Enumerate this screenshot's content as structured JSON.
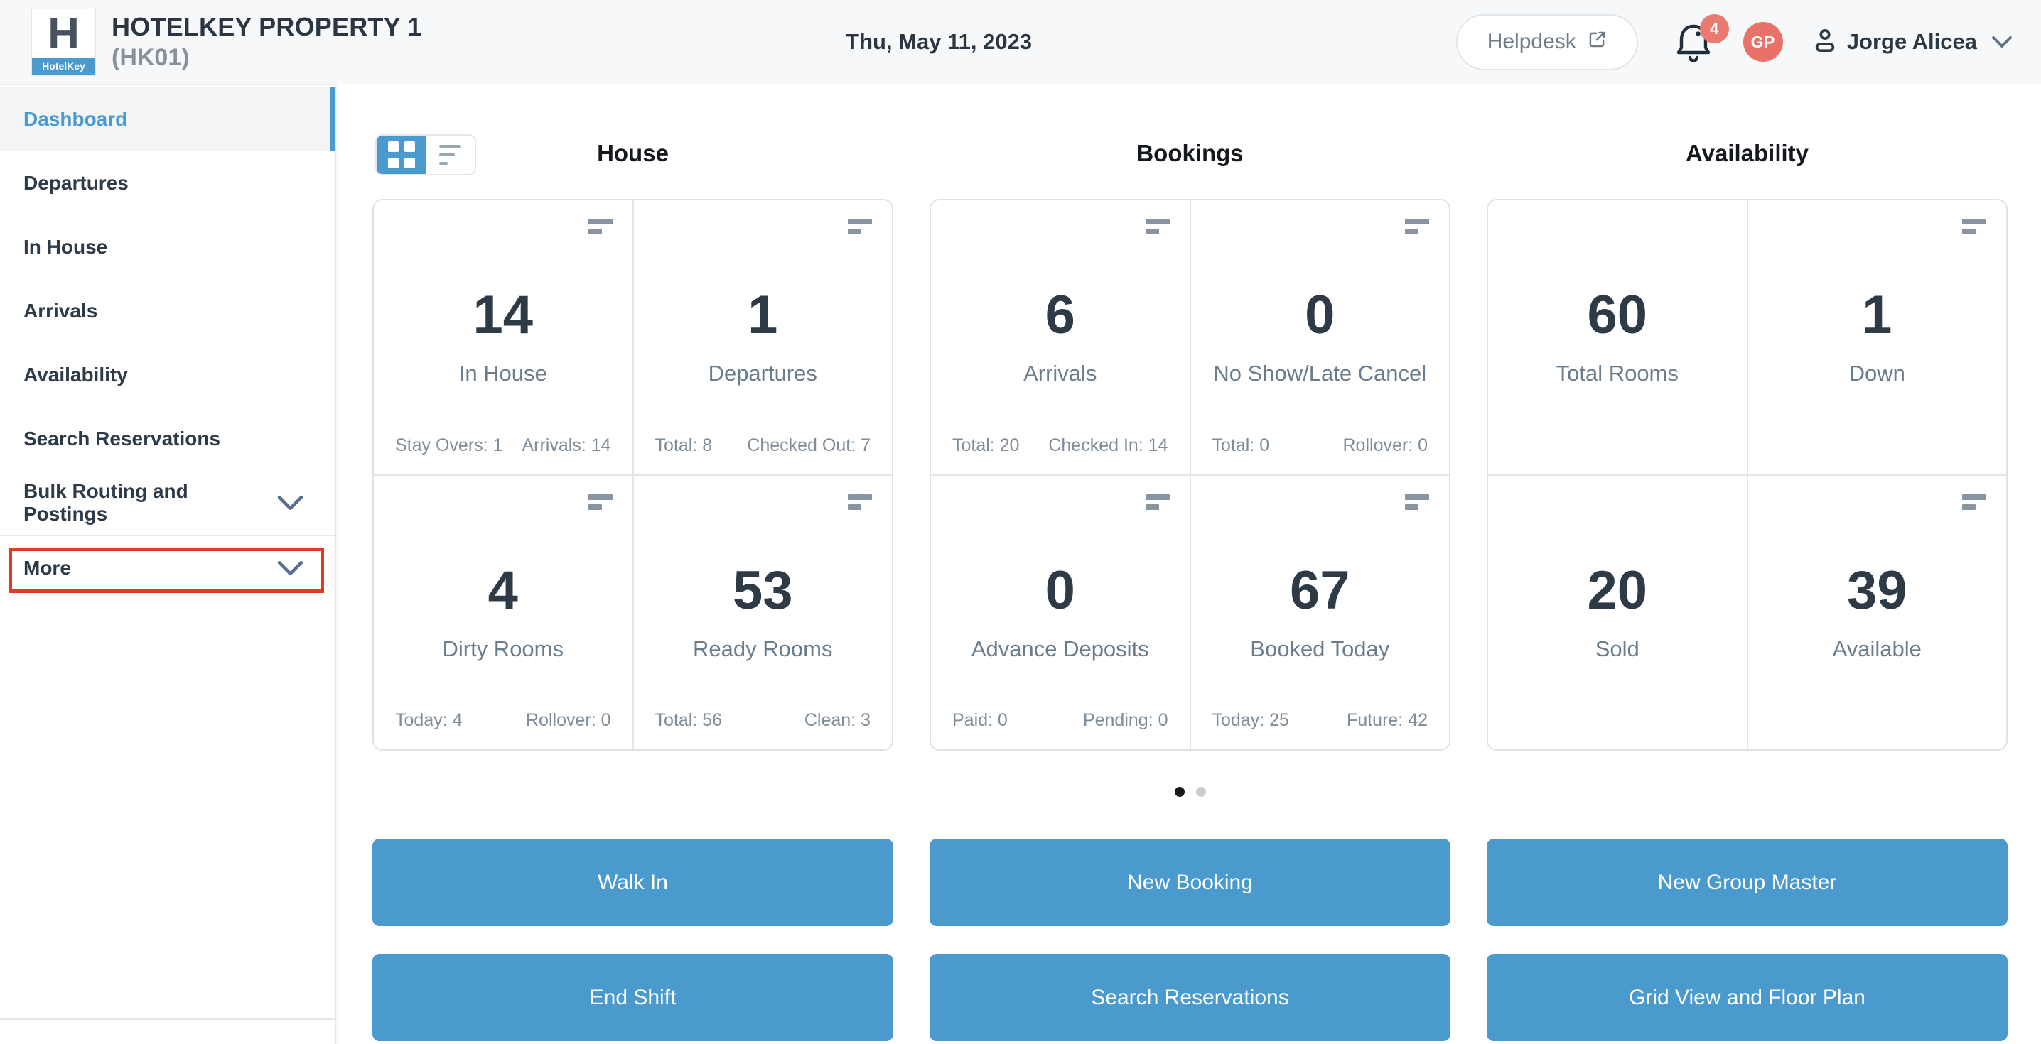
{
  "header": {
    "logo_letter": "H",
    "logo_brand": "HotelKey",
    "property_name": "HOTELKEY PROPERTY 1",
    "property_code": "(HK01)",
    "date": "Thu, May 11, 2023",
    "helpdesk_label": "Helpdesk",
    "notification_badge": "4",
    "avatar_initials": "GP",
    "user_name": "Jorge Alicea"
  },
  "sidebar": {
    "items": [
      {
        "label": "Dashboard",
        "active": true,
        "chevron": false,
        "highlighted": false,
        "divider_above": false
      },
      {
        "label": "Departures",
        "active": false,
        "chevron": false,
        "highlighted": false,
        "divider_above": false
      },
      {
        "label": "In House",
        "active": false,
        "chevron": false,
        "highlighted": false,
        "divider_above": false
      },
      {
        "label": "Arrivals",
        "active": false,
        "chevron": false,
        "highlighted": false,
        "divider_above": false
      },
      {
        "label": "Availability",
        "active": false,
        "chevron": false,
        "highlighted": false,
        "divider_above": false
      },
      {
        "label": "Search Reservations",
        "active": false,
        "chevron": false,
        "highlighted": false,
        "divider_above": false
      },
      {
        "label": "Bulk Routing and Postings",
        "active": false,
        "chevron": true,
        "highlighted": false,
        "divider_above": false
      },
      {
        "label": "More",
        "active": false,
        "chevron": true,
        "highlighted": true,
        "divider_above": true
      }
    ]
  },
  "view_toggle": {
    "active_view": "grid"
  },
  "columns": [
    {
      "title": "House",
      "cards": [
        {
          "value": "14",
          "label": "In House",
          "menu_icon": true,
          "stats": [
            {
              "label": "Stay Overs",
              "value": "1"
            },
            {
              "label": "Arrivals",
              "value": "14"
            }
          ]
        },
        {
          "value": "1",
          "label": "Departures",
          "menu_icon": true,
          "stats": [
            {
              "label": "Total",
              "value": "8"
            },
            {
              "label": "Checked Out",
              "value": "7"
            }
          ]
        },
        {
          "value": "4",
          "label": "Dirty Rooms",
          "menu_icon": true,
          "stats": [
            {
              "label": "Today",
              "value": "4"
            },
            {
              "label": "Rollover",
              "value": "0"
            }
          ]
        },
        {
          "value": "53",
          "label": "Ready Rooms",
          "menu_icon": true,
          "stats": [
            {
              "label": "Total",
              "value": "56"
            },
            {
              "label": "Clean",
              "value": "3"
            }
          ]
        }
      ]
    },
    {
      "title": "Bookings",
      "cards": [
        {
          "value": "6",
          "label": "Arrivals",
          "menu_icon": true,
          "stats": [
            {
              "label": "Total",
              "value": "20"
            },
            {
              "label": "Checked In",
              "value": "14"
            }
          ]
        },
        {
          "value": "0",
          "label": "No Show/Late Cancel",
          "menu_icon": true,
          "stats": [
            {
              "label": "Total",
              "value": "0"
            },
            {
              "label": "Rollover",
              "value": "0"
            }
          ]
        },
        {
          "value": "0",
          "label": "Advance Deposits",
          "menu_icon": true,
          "stats": [
            {
              "label": "Paid",
              "value": "0"
            },
            {
              "label": "Pending",
              "value": "0"
            }
          ]
        },
        {
          "value": "67",
          "label": "Booked Today",
          "menu_icon": true,
          "stats": [
            {
              "label": "Today",
              "value": "25"
            },
            {
              "label": "Future",
              "value": "42"
            }
          ]
        }
      ]
    },
    {
      "title": "Availability",
      "cards": [
        {
          "value": "60",
          "label": "Total Rooms",
          "menu_icon": false,
          "stats": []
        },
        {
          "value": "1",
          "label": "Down",
          "menu_icon": true,
          "stats": []
        },
        {
          "value": "20",
          "label": "Sold",
          "menu_icon": false,
          "stats": []
        },
        {
          "value": "39",
          "label": "Available",
          "menu_icon": true,
          "stats": []
        }
      ]
    }
  ],
  "pagination": {
    "dot_count": 2,
    "active_index": 0
  },
  "action_buttons": [
    "Walk In",
    "New Booking",
    "New Group Master",
    "End Shift",
    "Search Reservations",
    "Grid View and Floor Plan"
  ],
  "colors": {
    "accent_blue": "#4A9ACE",
    "active_link_blue": "#4A9AD2",
    "badge_red": "#E97A70",
    "avatar_coral": "#E8726A",
    "highlight_red": "#E33B22",
    "dark_text": "#2E3A46",
    "muted_label": "#6B7D8C",
    "stat_text": "#7F8D99"
  }
}
